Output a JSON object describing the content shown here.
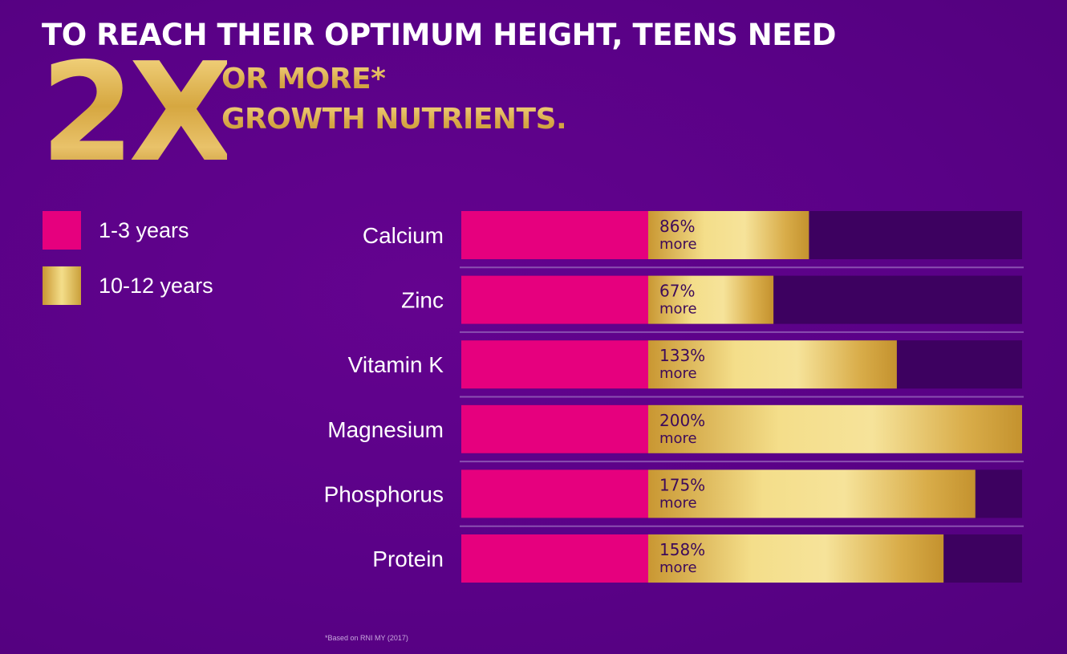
{
  "header": {
    "headline": "TO REACH THEIR OPTIMUM HEIGHT, TEENS NEED",
    "multiplier": "2X",
    "line1": "OR MORE*",
    "line2": "GROWTH NUTRIENTS."
  },
  "legend": {
    "items": [
      {
        "label": "1-3 years",
        "color": "#e6007e"
      },
      {
        "label": "10-12 years",
        "color": "#d9ad4a"
      }
    ]
  },
  "footnote": "*Based on RNI MY (2017)",
  "colors": {
    "background": "#5a0187",
    "track": "#3d0160",
    "pink": "#e6007e",
    "gold_light": "#f4de8a",
    "gold_dark": "#c99732",
    "separator": "#8a4fb0"
  },
  "chart_data": {
    "type": "bar",
    "orientation": "horizontal",
    "stacked": true,
    "xlim": [
      0,
      300
    ],
    "categories": [
      "Calcium",
      "Zinc",
      "Vitamin K",
      "Magnesium",
      "Phosphorus",
      "Protein"
    ],
    "series": [
      {
        "name": "1-3 years",
        "values": [
          100,
          100,
          100,
          100,
          100,
          100
        ]
      },
      {
        "name": "10-12 years",
        "values": [
          86,
          67,
          133,
          200,
          175,
          158
        ]
      }
    ],
    "data_labels": [
      {
        "value": "86%",
        "suffix": "more"
      },
      {
        "value": "67%",
        "suffix": "more"
      },
      {
        "value": "133%",
        "suffix": "more"
      },
      {
        "value": "200%",
        "suffix": "more"
      },
      {
        "value": "175%",
        "suffix": "more"
      },
      {
        "value": "158%",
        "suffix": "more"
      }
    ],
    "grid": false,
    "legend_position": "left"
  }
}
